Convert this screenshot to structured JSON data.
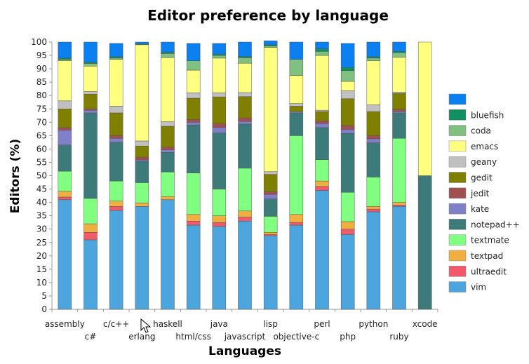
{
  "chart_data": {
    "type": "bar",
    "stacked": true,
    "title": "Editor preference by language",
    "xlabel": "Languages",
    "ylabel": "Editors (%)",
    "ylim": [
      0,
      100
    ],
    "ytick_step": 5,
    "legend_position": "right",
    "categories": [
      "assembly",
      "c#",
      "c/c++",
      "erlang",
      "haskell",
      "html/css",
      "java",
      "javascript",
      "lisp",
      "objective-c",
      "perl",
      "php",
      "python",
      "ruby",
      "xcode"
    ],
    "series": [
      {
        "name": "vim",
        "color": "#4ca5dd",
        "values": [
          41,
          26,
          37,
          38.5,
          41,
          31.5,
          31,
          33,
          27.5,
          31.5,
          44.5,
          28,
          36.5,
          38.5,
          0
        ]
      },
      {
        "name": "ultraedit",
        "color": "#f05a6a",
        "values": [
          1,
          2.8,
          1.5,
          0,
          0,
          1.5,
          1.5,
          1.5,
          0.5,
          1,
          1.5,
          2,
          1,
          0.5,
          0
        ]
      },
      {
        "name": "textpad",
        "color": "#f0b040",
        "values": [
          2.2,
          3.2,
          2,
          1.3,
          1.2,
          2.5,
          2.5,
          2.3,
          0.8,
          3,
          2,
          2.8,
          1,
          1,
          0
        ]
      },
      {
        "name": "textmate",
        "color": "#80ff80",
        "values": [
          7.5,
          9.5,
          7.5,
          7.6,
          9.2,
          15.5,
          10,
          16,
          6,
          29.5,
          8,
          11,
          11,
          24,
          0
        ]
      },
      {
        "name": "notepad++",
        "color": "#3d7a7a",
        "values": [
          9.8,
          32,
          14.5,
          8,
          7.3,
          18,
          21,
          16.5,
          6.5,
          8.5,
          12,
          22,
          12.8,
          9.5,
          50
        ]
      },
      {
        "name": "kate",
        "color": "#8080c8",
        "values": [
          5.5,
          1,
          1.5,
          0.5,
          1,
          1,
          2,
          1,
          1.7,
          0.5,
          1.5,
          1.5,
          1.5,
          0.5,
          0
        ]
      },
      {
        "name": "jedit",
        "color": "#a05050",
        "values": [
          1,
          0.5,
          1,
          1,
          1,
          1,
          1.5,
          1.3,
          1,
          0,
          1,
          1.5,
          1.2,
          0.8,
          0
        ]
      },
      {
        "name": "gedit",
        "color": "#7f7f00",
        "values": [
          7,
          5.5,
          8.5,
          4.2,
          7.8,
          8,
          10,
          8,
          6.5,
          2,
          3.5,
          10,
          9,
          6,
          0
        ]
      },
      {
        "name": "geany",
        "color": "#c0c0c0",
        "values": [
          3,
          1,
          2.5,
          1.9,
          1.7,
          2,
          1.5,
          1.5,
          1,
          1,
          0.5,
          3,
          2.5,
          0.5,
          0
        ]
      },
      {
        "name": "emacs",
        "color": "#ffff80",
        "values": [
          15,
          9.5,
          17.5,
          36,
          24,
          8.5,
          13,
          11,
          46.5,
          10.5,
          20.5,
          3.5,
          16.5,
          13,
          50
        ]
      },
      {
        "name": "coda",
        "color": "#80c080",
        "values": [
          0.5,
          1,
          0.5,
          0,
          1.5,
          3.5,
          1,
          2,
          0.5,
          6,
          1.5,
          4,
          1,
          1.7,
          0
        ]
      },
      {
        "name": "bluefish",
        "color": "#109060",
        "values": [
          0.5,
          0.5,
          0.5,
          0.3,
          0.5,
          0,
          0.5,
          0.5,
          0.5,
          0,
          1,
          1.2,
          0.5,
          0.5,
          0
        ]
      },
      {
        "name": "",
        "color": "#0a7ff0",
        "values": [
          6,
          7.5,
          5,
          0.7,
          3.8,
          6.5,
          4,
          5.4,
          1.5,
          6.5,
          2.5,
          9,
          5.5,
          3.5,
          0
        ]
      }
    ]
  }
}
